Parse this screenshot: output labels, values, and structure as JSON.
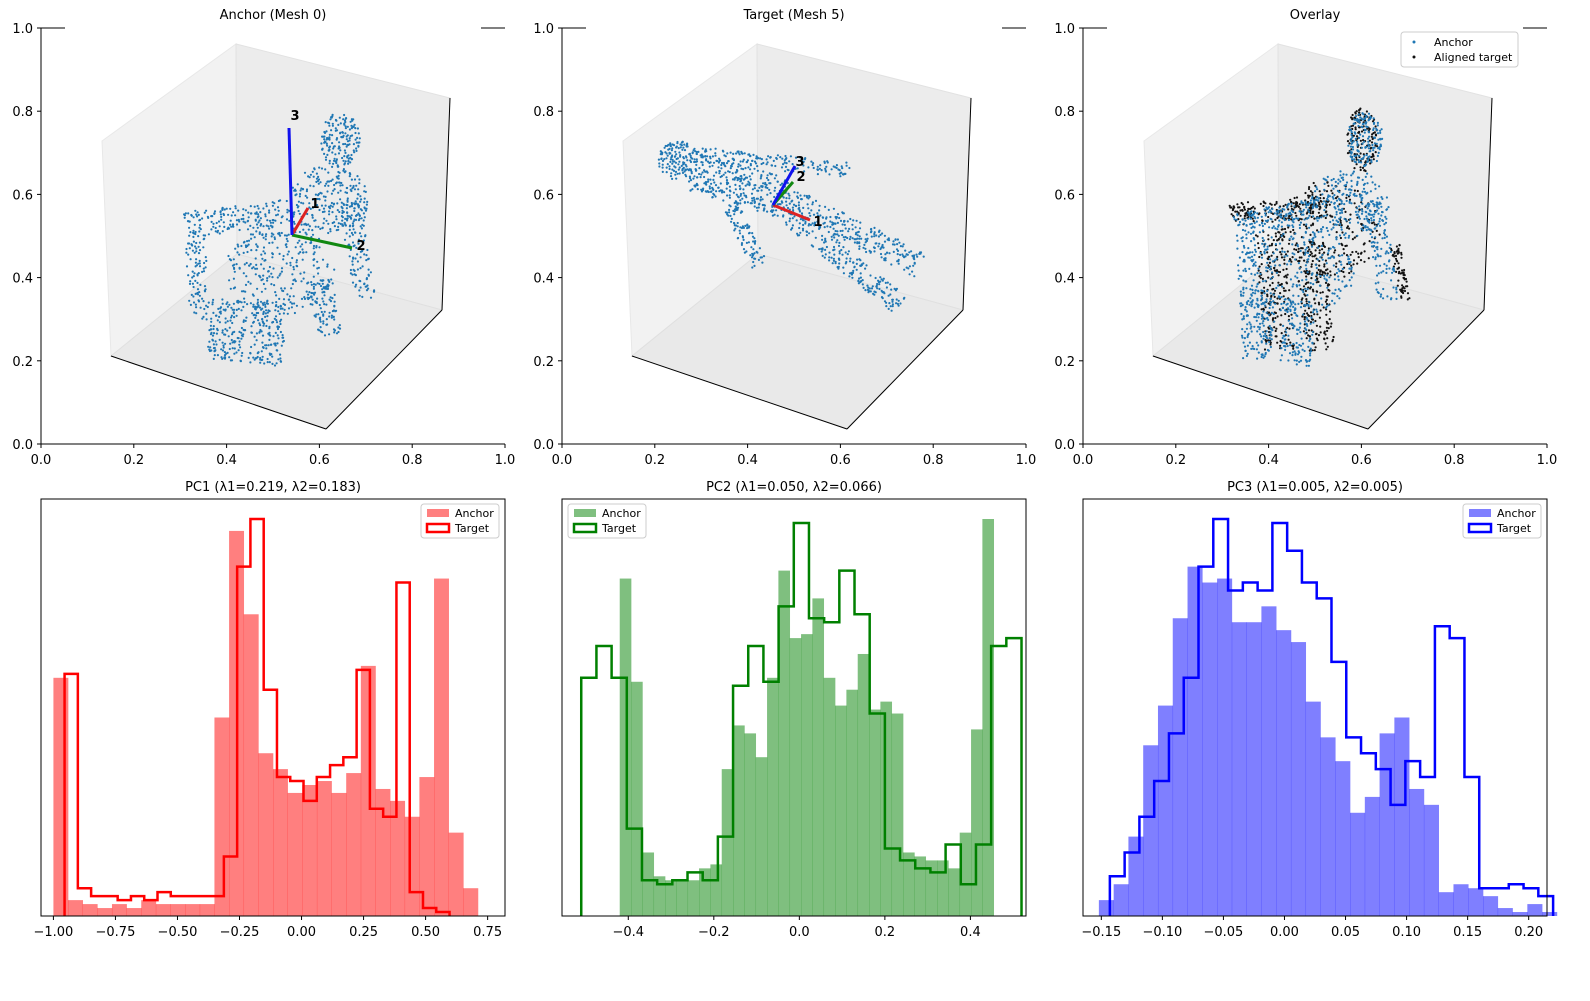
{
  "chart_data": [
    {
      "type": "scatter3d",
      "title": "Anchor (Mesh 0)",
      "xlim": [
        0,
        1
      ],
      "ylim": [
        0,
        1
      ],
      "xticks": [
        "0.0",
        "0.2",
        "0.4",
        "0.6",
        "0.8",
        "1.0"
      ],
      "yticks": [
        "0.0",
        "0.2",
        "0.4",
        "0.6",
        "0.8",
        "1.0"
      ],
      "series": [
        {
          "name": "Anchor",
          "color": "#1f77b4"
        }
      ],
      "axis_labels": [
        {
          "label": "1",
          "color": "#dd2222"
        },
        {
          "label": "2",
          "color": "#118811"
        },
        {
          "label": "3",
          "color": "#1111ee"
        }
      ]
    },
    {
      "type": "scatter3d",
      "title": "Target (Mesh 5)",
      "xlim": [
        0,
        1
      ],
      "ylim": [
        0,
        1
      ],
      "xticks": [
        "0.0",
        "0.2",
        "0.4",
        "0.6",
        "0.8",
        "1.0"
      ],
      "yticks": [
        "0.0",
        "0.2",
        "0.4",
        "0.6",
        "0.8",
        "1.0"
      ],
      "series": [
        {
          "name": "Target",
          "color": "#1f77b4"
        }
      ],
      "axis_labels": [
        {
          "label": "1",
          "color": "#dd2222"
        },
        {
          "label": "2",
          "color": "#118811"
        },
        {
          "label": "3",
          "color": "#1111ee"
        }
      ]
    },
    {
      "type": "scatter3d",
      "title": "Overlay",
      "xlim": [
        0,
        1
      ],
      "ylim": [
        0,
        1
      ],
      "xticks": [
        "0.0",
        "0.2",
        "0.4",
        "0.6",
        "0.8",
        "1.0"
      ],
      "yticks": [
        "0.0",
        "0.2",
        "0.4",
        "0.6",
        "0.8",
        "1.0"
      ],
      "series": [
        {
          "name": "Anchor",
          "color": "#1f77b4"
        },
        {
          "name": "Aligned target",
          "color": "#111111"
        }
      ],
      "legend": {
        "position": "top-right"
      }
    },
    {
      "type": "histogram",
      "title": "PC1 (λ1=0.219, λ2=0.183)",
      "color": "#ff0000",
      "xlim": [
        -1.05,
        0.82
      ],
      "xticks": [
        {
          "v": -1.0,
          "label": "−1.00"
        },
        {
          "v": -0.75,
          "label": "−0.75"
        },
        {
          "v": -0.5,
          "label": "−0.50"
        },
        {
          "v": -0.25,
          "label": "−0.25"
        },
        {
          "v": 0.0,
          "label": "0.00"
        },
        {
          "v": 0.25,
          "label": "0.25"
        },
        {
          "v": 0.5,
          "label": "0.50"
        },
        {
          "v": 0.75,
          "label": "0.75"
        }
      ],
      "ymax": 1.0,
      "legend": {
        "position": "top-right"
      },
      "series": [
        {
          "name": "Anchor",
          "style": "filled",
          "start": -1.0,
          "width": 0.059,
          "values": [
            0.6,
            0.04,
            0.03,
            0.02,
            0.03,
            0.02,
            0.04,
            0.03,
            0.03,
            0.03,
            0.03,
            0.5,
            0.97,
            0.76,
            0.41,
            0.37,
            0.31,
            0.33,
            0.34,
            0.31,
            0.36,
            0.63,
            0.32,
            0.29,
            0.25,
            0.35,
            0.85,
            0.21,
            0.07
          ]
        },
        {
          "name": "Target",
          "style": "step",
          "start": -0.955,
          "width": 0.0535,
          "values": [
            0.61,
            0.07,
            0.05,
            0.05,
            0.04,
            0.05,
            0.04,
            0.06,
            0.05,
            0.05,
            0.05,
            0.05,
            0.15,
            0.88,
            1.0,
            0.57,
            0.35,
            0.34,
            0.29,
            0.35,
            0.38,
            0.4,
            0.62,
            0.27,
            0.25,
            0.84,
            0.06,
            0.02,
            0.01
          ]
        }
      ]
    },
    {
      "type": "histogram",
      "title": "PC2 (λ1=0.050, λ2=0.066)",
      "color": "#008000",
      "xlim": [
        -0.555,
        0.53
      ],
      "xticks": [
        {
          "v": -0.4,
          "label": "−0.4"
        },
        {
          "v": -0.2,
          "label": "−0.2"
        },
        {
          "v": 0.0,
          "label": "0.0"
        },
        {
          "v": 0.2,
          "label": "0.2"
        },
        {
          "v": 0.4,
          "label": "0.4"
        }
      ],
      "ymax": 1.0,
      "legend": {
        "position": "top-left"
      },
      "series": [
        {
          "name": "Anchor",
          "style": "filled",
          "start": -0.42,
          "width": 0.0265,
          "values": [
            0.85,
            0.59,
            0.16,
            0.1,
            0.09,
            0.09,
            0.09,
            0.12,
            0.13,
            0.37,
            0.48,
            0.46,
            0.4,
            0.6,
            0.87,
            0.7,
            0.71,
            0.8,
            0.6,
            0.53,
            0.57,
            0.66,
            0.52,
            0.54,
            0.51,
            0.16,
            0.15,
            0.14,
            0.14,
            0.12,
            0.21,
            0.47,
            1.0
          ]
        },
        {
          "name": "Target",
          "style": "step",
          "start": -0.51,
          "width": 0.0355,
          "values": [
            0.6,
            0.68,
            0.6,
            0.22,
            0.09,
            0.08,
            0.09,
            0.11,
            0.09,
            0.2,
            0.58,
            0.68,
            0.59,
            0.78,
            0.99,
            0.75,
            0.74,
            0.87,
            0.76,
            0.51,
            0.17,
            0.14,
            0.12,
            0.11,
            0.18,
            0.08,
            0.18,
            0.68,
            0.7
          ]
        }
      ]
    },
    {
      "type": "histogram",
      "title": "PC3 (λ1=0.005, λ2=0.005)",
      "color": "#0000ff",
      "xlim": [
        -0.165,
        0.215
      ],
      "xticks": [
        {
          "v": -0.15,
          "label": "−0.15"
        },
        {
          "v": -0.1,
          "label": "−0.10"
        },
        {
          "v": -0.05,
          "label": "−0.05"
        },
        {
          "v": 0.0,
          "label": "0.00"
        },
        {
          "v": 0.05,
          "label": "0.05"
        },
        {
          "v": 0.1,
          "label": "0.10"
        },
        {
          "v": 0.15,
          "label": "0.15"
        },
        {
          "v": 0.2,
          "label": "0.20"
        }
      ],
      "ymax": 1.0,
      "legend": {
        "position": "top-right"
      },
      "series": [
        {
          "name": "Anchor",
          "style": "filled",
          "start": -0.152,
          "width": 0.0121,
          "values": [
            0.04,
            0.08,
            0.2,
            0.43,
            0.53,
            0.75,
            0.88,
            0.84,
            0.85,
            0.74,
            0.74,
            0.78,
            0.72,
            0.69,
            0.54,
            0.45,
            0.39,
            0.26,
            0.3,
            0.46,
            0.5,
            0.32,
            0.28,
            0.06,
            0.08,
            0.07,
            0.05,
            0.02,
            0.01,
            0.03,
            0.01
          ]
        },
        {
          "name": "Target",
          "style": "step",
          "start": -0.143,
          "width": 0.0121,
          "values": [
            0.1,
            0.16,
            0.25,
            0.34,
            0.46,
            0.6,
            0.88,
            1.0,
            0.82,
            0.84,
            0.82,
            0.99,
            0.92,
            0.84,
            0.8,
            0.64,
            0.45,
            0.41,
            0.37,
            0.28,
            0.39,
            0.35,
            0.73,
            0.7,
            0.35,
            0.07,
            0.07,
            0.08,
            0.07,
            0.05
          ]
        }
      ]
    }
  ]
}
